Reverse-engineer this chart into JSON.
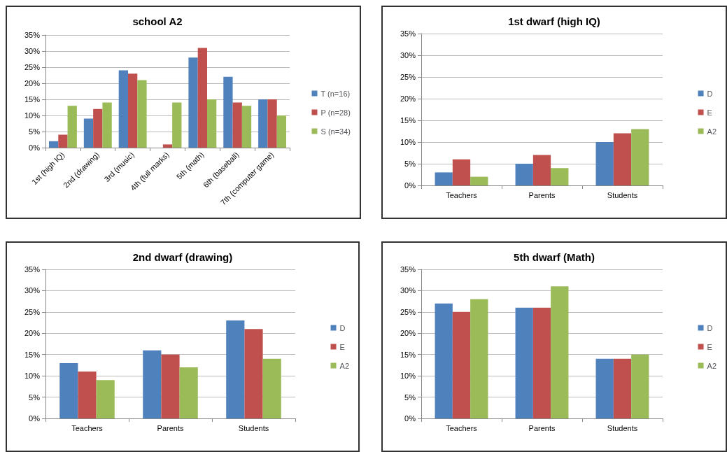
{
  "chart_data": [
    {
      "type": "bar",
      "title": "school A2",
      "categories": [
        "1st (high IQ)",
        "2nd (drawing)",
        "3rd (music)",
        "4th (full marks)",
        "5th (math)",
        "6th (baseball)",
        "7th (computer game)"
      ],
      "series": [
        {
          "name": "T (n=16)",
          "color": "#4f81bd",
          "values": [
            2,
            9,
            24,
            0,
            28,
            22,
            15
          ]
        },
        {
          "name": "P (n=28)",
          "color": "#c0504d",
          "values": [
            4,
            12,
            23,
            1,
            31,
            14,
            15
          ]
        },
        {
          "name": "S (n=34)",
          "color": "#9bbb59",
          "values": [
            13,
            14,
            21,
            14,
            15,
            13,
            10
          ]
        }
      ],
      "ylim": [
        0,
        35
      ],
      "yticks": [
        {
          "value": 0,
          "label": "0%"
        },
        {
          "value": 5,
          "label": "5%"
        },
        {
          "value": 10,
          "label": "10%"
        },
        {
          "value": 15,
          "label": "15%"
        },
        {
          "value": 20,
          "label": "20%"
        },
        {
          "value": 25,
          "label": "25%"
        },
        {
          "value": 30,
          "label": "30%"
        },
        {
          "value": 35,
          "label": "35%"
        }
      ],
      "grid": "y",
      "legend": "right"
    },
    {
      "type": "bar",
      "title": "1st dwarf (high IQ)",
      "categories": [
        "Teachers",
        "Parents",
        "Students"
      ],
      "series": [
        {
          "name": "D",
          "color": "#4f81bd",
          "values": [
            3,
            5,
            10
          ]
        },
        {
          "name": "E",
          "color": "#c0504d",
          "values": [
            6,
            7,
            12
          ]
        },
        {
          "name": "A2",
          "color": "#9bbb59",
          "values": [
            2,
            4,
            13
          ]
        }
      ],
      "ylim": [
        0,
        35
      ],
      "yticks": [
        {
          "value": 0,
          "label": "0%"
        },
        {
          "value": 5,
          "label": "5%"
        },
        {
          "value": 10,
          "label": "10%"
        },
        {
          "value": 15,
          "label": "15%"
        },
        {
          "value": 20,
          "label": "20%"
        },
        {
          "value": 25,
          "label": "25%"
        },
        {
          "value": 30,
          "label": "30%"
        },
        {
          "value": 35,
          "label": "35%"
        }
      ],
      "grid": "y",
      "legend": "right"
    },
    {
      "type": "bar",
      "title": "2nd dwarf (drawing)",
      "categories": [
        "Teachers",
        "Parents",
        "Students"
      ],
      "series": [
        {
          "name": "D",
          "color": "#4f81bd",
          "values": [
            13,
            16,
            23
          ]
        },
        {
          "name": "E",
          "color": "#c0504d",
          "values": [
            11,
            15,
            21
          ]
        },
        {
          "name": "A2",
          "color": "#9bbb59",
          "values": [
            9,
            12,
            14
          ]
        }
      ],
      "ylim": [
        0,
        35
      ],
      "yticks": [
        {
          "value": 0,
          "label": "0%"
        },
        {
          "value": 5,
          "label": "5%"
        },
        {
          "value": 10,
          "label": "10%"
        },
        {
          "value": 15,
          "label": "15%"
        },
        {
          "value": 20,
          "label": "20%"
        },
        {
          "value": 25,
          "label": "25%"
        },
        {
          "value": 30,
          "label": "30%"
        },
        {
          "value": 35,
          "label": "35%"
        }
      ],
      "grid": "y",
      "legend": "right"
    },
    {
      "type": "bar",
      "title": "5th dwarf (Math)",
      "categories": [
        "Teachers",
        "Parents",
        "Students"
      ],
      "series": [
        {
          "name": "D",
          "color": "#4f81bd",
          "values": [
            27,
            26,
            14
          ]
        },
        {
          "name": "E",
          "color": "#c0504d",
          "values": [
            25,
            26,
            14
          ]
        },
        {
          "name": "A2",
          "color": "#9bbb59",
          "values": [
            28,
            31,
            15
          ]
        }
      ],
      "ylim": [
        0,
        35
      ],
      "yticks": [
        {
          "value": 0,
          "label": "0%"
        },
        {
          "value": 5,
          "label": "5%"
        },
        {
          "value": 10,
          "label": "10%"
        },
        {
          "value": 15,
          "label": "15%"
        },
        {
          "value": 20,
          "label": "20%"
        },
        {
          "value": 25,
          "label": "25%"
        },
        {
          "value": 30,
          "label": "30%"
        },
        {
          "value": 35,
          "label": "35%"
        }
      ],
      "grid": "y",
      "legend": "right"
    }
  ]
}
